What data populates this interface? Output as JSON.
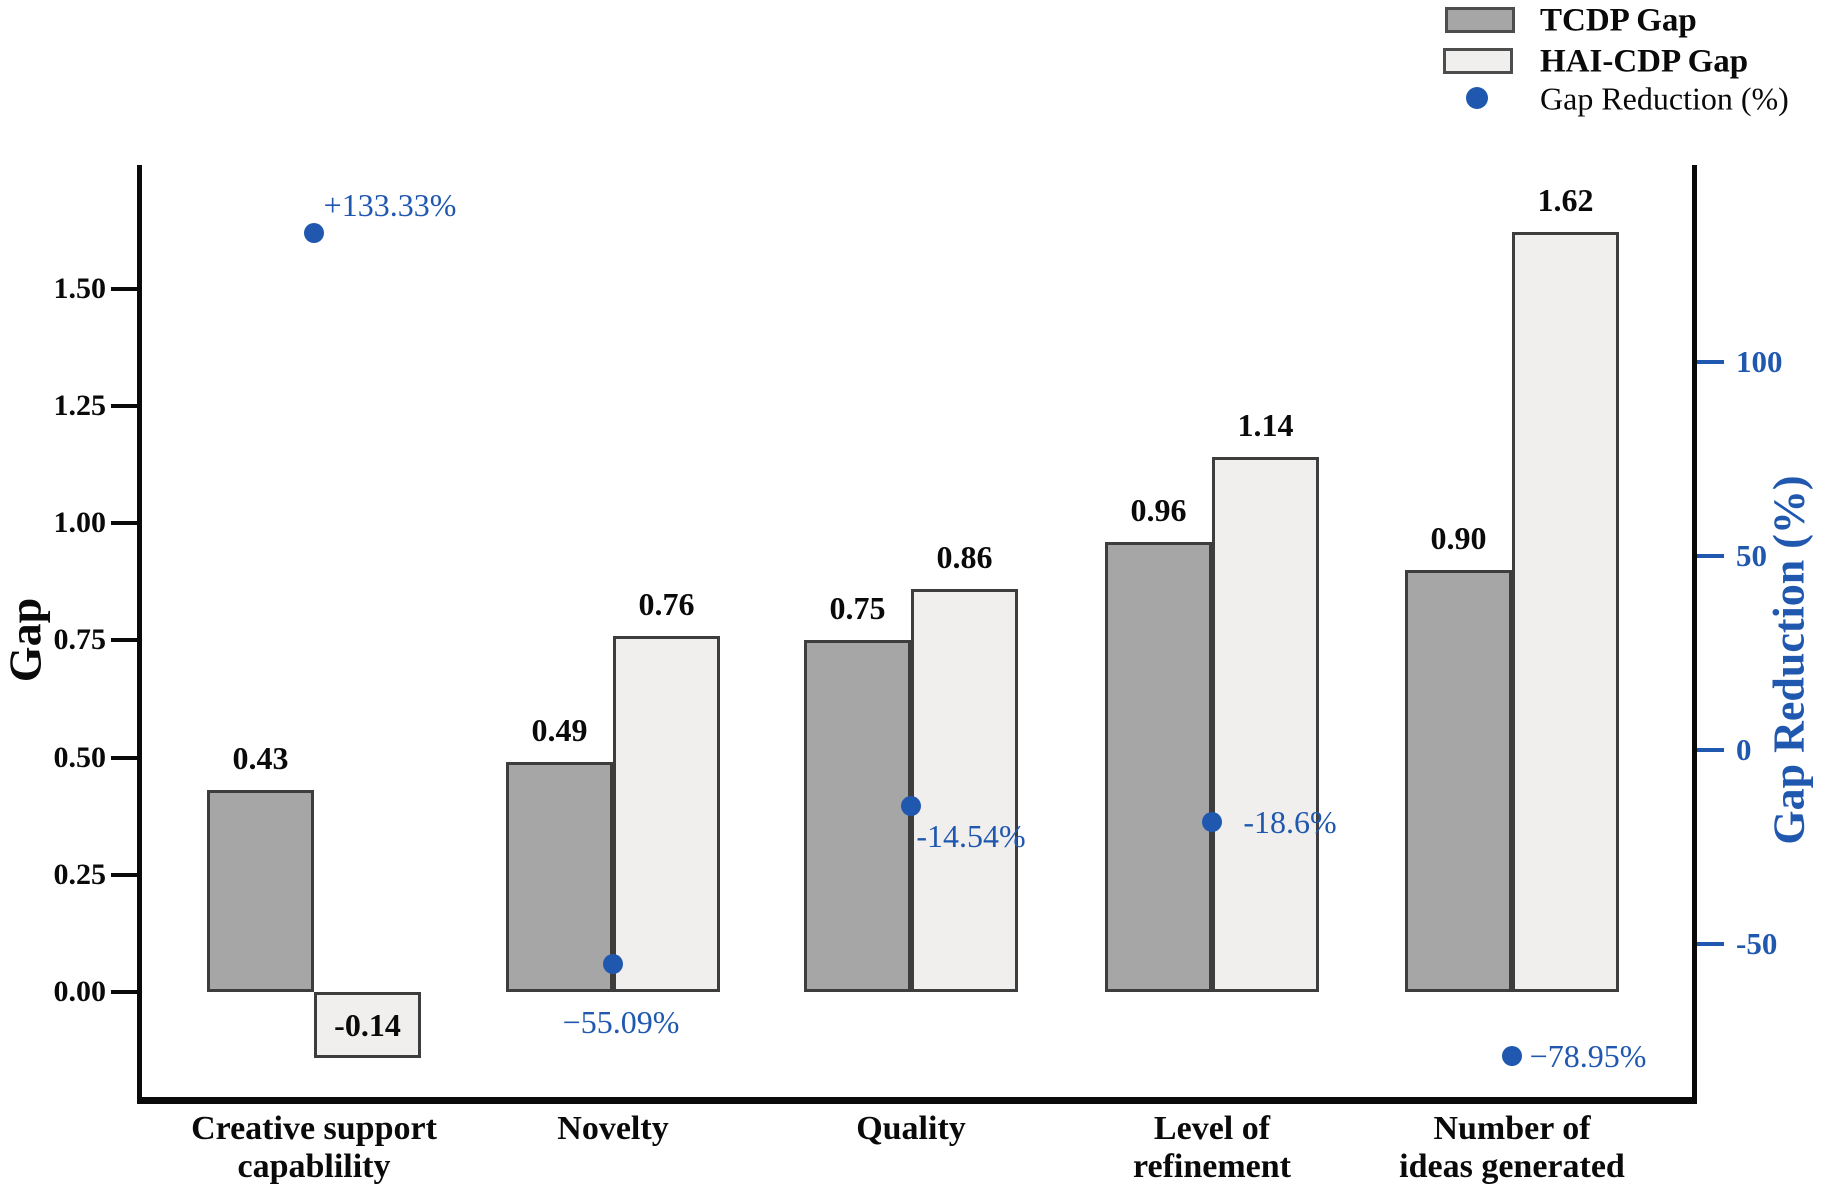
{
  "chart_data": {
    "type": "bar",
    "title": "",
    "categories": [
      "Creative support\ncapablility",
      "Novelty",
      "Quality",
      "Level of\nrefinement",
      "Number of\nideas generated"
    ],
    "series": [
      {
        "name": "TCDP Gap",
        "values": [
          0.43,
          0.49,
          0.75,
          0.96,
          0.9
        ],
        "value_labels": [
          "0.43",
          "0.49",
          "0.75",
          "0.96",
          "0.90"
        ],
        "fill": "#a6a6a6",
        "border": "#3d3d3d"
      },
      {
        "name": "HAI-CDP Gap",
        "values": [
          -0.14,
          0.76,
          0.86,
          1.14,
          1.62
        ],
        "value_labels": [
          "-0.14",
          "0.76",
          "0.86",
          "1.14",
          "1.62"
        ],
        "fill": "#f0efee",
        "border": "#3d3d3d"
      }
    ],
    "scatter": {
      "name": "Gap Reduction (%)",
      "values": [
        133.33,
        -55.09,
        -14.54,
        -18.6,
        -78.95
      ],
      "point_labels": [
        "+133.33%",
        "−55.09%",
        "-14.54%",
        "-18.6%",
        "−78.95%"
      ],
      "color": "#2058af",
      "label_offsets": [
        [
          76,
          -28
        ],
        [
          8,
          58
        ],
        [
          60,
          30
        ],
        [
          78,
          0
        ],
        [
          76,
          0
        ]
      ]
    },
    "left_axis": {
      "label": "Gap",
      "tick_labels": [
        "0.00",
        "0.25",
        "0.50",
        "0.75",
        "1.00",
        "1.25",
        "1.50"
      ],
      "tick_values": [
        0,
        0.25,
        0.5,
        0.75,
        1.0,
        1.25,
        1.5
      ],
      "range": [
        -0.22,
        1.76
      ]
    },
    "right_axis": {
      "label": "Gap Reduction (%)",
      "tick_labels": [
        "100",
        "50",
        "0",
        "-50"
      ],
      "tick_values": [
        100,
        50,
        0,
        -50
      ],
      "range": [
        -89,
        151
      ],
      "color": "#2058af"
    },
    "legend": {
      "position": "top-right",
      "items": [
        {
          "label": "TCDP Gap",
          "marker": "swatch",
          "fill": "#a6a6a6"
        },
        {
          "label": "HAI-CDP Gap",
          "marker": "swatch",
          "fill": "#f0efee"
        },
        {
          "label": "Gap Reduction (%)",
          "marker": "dot",
          "fill": "#2058af"
        }
      ]
    },
    "grid": false
  }
}
